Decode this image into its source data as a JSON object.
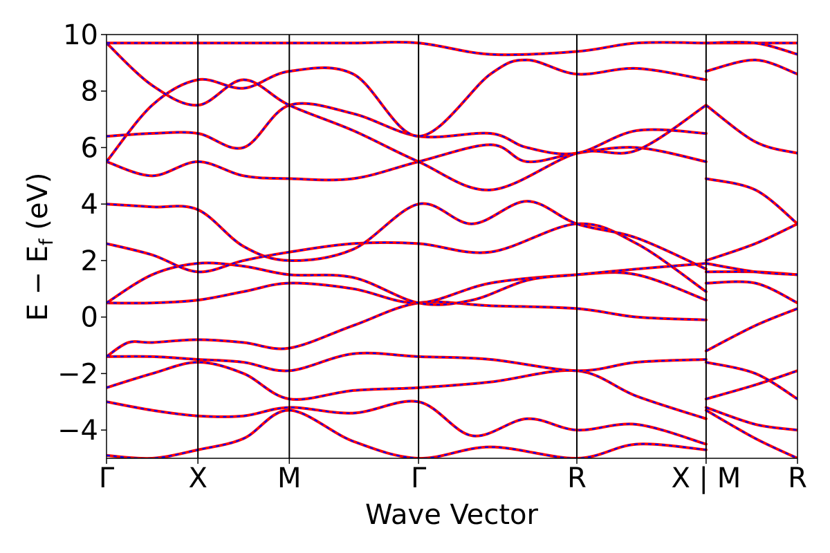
{
  "chart_data": {
    "type": "line",
    "title": "",
    "xlabel": "Wave Vector",
    "ylabel_main": "E − E",
    "ylabel_sub": "f",
    "ylabel_unit": " (eV)",
    "ylim": [
      -5,
      10
    ],
    "yticks": [
      -4,
      -2,
      0,
      2,
      4,
      6,
      8,
      10
    ],
    "ytick_labels": [
      "−4",
      "−2",
      "0",
      "2",
      "4",
      "6",
      "8",
      "10"
    ],
    "kpoint_labels": [
      "Γ",
      "X",
      "M",
      "Γ",
      "R",
      "X | M",
      "R"
    ],
    "kpoint_positions": [
      0,
      0.5,
      1.0,
      1.707,
      2.573,
      3.28,
      3.78
    ],
    "kpath_break_after": 3.28,
    "grid": false,
    "legend": "none",
    "colors": {
      "series_a": "#ff0000",
      "series_b": "#0000ff"
    },
    "series": [
      {
        "values": [
          {
            "k": 0,
            "e": -4.9
          },
          {
            "k": 0.25,
            "e": -5.0
          },
          {
            "k": 0.5,
            "e": -4.7
          },
          {
            "k": 0.75,
            "e": -4.3
          },
          {
            "k": 1.0,
            "e": -3.3
          },
          {
            "k": 1.35,
            "e": -4.4
          },
          {
            "k": 1.707,
            "e": -5.0
          },
          {
            "k": 2.1,
            "e": -4.6
          },
          {
            "k": 2.573,
            "e": -5.0
          },
          {
            "k": 2.9,
            "e": -4.5
          },
          {
            "k": 3.28,
            "e": -4.7
          },
          {
            "k": 3.28,
            "e": -3.3
          },
          {
            "k": 3.55,
            "e": -4.3
          },
          {
            "k": 3.78,
            "e": -5.0
          }
        ]
      },
      {
        "values": [
          {
            "k": 0,
            "e": -3.0
          },
          {
            "k": 0.25,
            "e": -3.3
          },
          {
            "k": 0.5,
            "e": -3.5
          },
          {
            "k": 0.75,
            "e": -3.5
          },
          {
            "k": 1.0,
            "e": -3.2
          },
          {
            "k": 1.35,
            "e": -3.4
          },
          {
            "k": 1.707,
            "e": -3.0
          },
          {
            "k": 2.0,
            "e": -4.2
          },
          {
            "k": 2.3,
            "e": -3.6
          },
          {
            "k": 2.573,
            "e": -4.0
          },
          {
            "k": 2.9,
            "e": -3.8
          },
          {
            "k": 3.28,
            "e": -4.5
          },
          {
            "k": 3.28,
            "e": -3.2
          },
          {
            "k": 3.55,
            "e": -3.8
          },
          {
            "k": 3.78,
            "e": -4.0
          }
        ]
      },
      {
        "values": [
          {
            "k": 0,
            "e": -2.5
          },
          {
            "k": 0.25,
            "e": -2.0
          },
          {
            "k": 0.5,
            "e": -1.6
          },
          {
            "k": 0.75,
            "e": -2.0
          },
          {
            "k": 1.0,
            "e": -2.9
          },
          {
            "k": 1.35,
            "e": -2.6
          },
          {
            "k": 1.707,
            "e": -2.5
          },
          {
            "k": 2.1,
            "e": -2.3
          },
          {
            "k": 2.573,
            "e": -1.9
          },
          {
            "k": 2.9,
            "e": -2.8
          },
          {
            "k": 3.28,
            "e": -3.6
          },
          {
            "k": 3.28,
            "e": -2.9
          },
          {
            "k": 3.55,
            "e": -2.4
          },
          {
            "k": 3.78,
            "e": -1.9
          }
        ]
      },
      {
        "values": [
          {
            "k": 0,
            "e": -1.4
          },
          {
            "k": 0.25,
            "e": -1.4
          },
          {
            "k": 0.5,
            "e": -1.5
          },
          {
            "k": 0.75,
            "e": -1.6
          },
          {
            "k": 1.0,
            "e": -1.9
          },
          {
            "k": 1.35,
            "e": -1.3
          },
          {
            "k": 1.707,
            "e": -1.4
          },
          {
            "k": 2.1,
            "e": -1.5
          },
          {
            "k": 2.573,
            "e": -1.9
          },
          {
            "k": 2.9,
            "e": -1.6
          },
          {
            "k": 3.28,
            "e": -1.5
          },
          {
            "k": 3.28,
            "e": -1.6
          },
          {
            "k": 3.55,
            "e": -2.0
          },
          {
            "k": 3.78,
            "e": -2.9
          }
        ]
      },
      {
        "values": [
          {
            "k": 0,
            "e": -1.4
          },
          {
            "k": 0.12,
            "e": -0.9
          },
          {
            "k": 0.25,
            "e": -0.9
          },
          {
            "k": 0.5,
            "e": -0.8
          },
          {
            "k": 0.75,
            "e": -0.9
          },
          {
            "k": 1.0,
            "e": -1.1
          },
          {
            "k": 1.35,
            "e": -0.3
          },
          {
            "k": 1.707,
            "e": 0.5
          },
          {
            "k": 2.1,
            "e": 0.4
          },
          {
            "k": 2.573,
            "e": 0.3
          },
          {
            "k": 2.9,
            "e": 0.0
          },
          {
            "k": 3.28,
            "e": -0.1
          },
          {
            "k": 3.28,
            "e": -1.2
          },
          {
            "k": 3.55,
            "e": -0.3
          },
          {
            "k": 3.78,
            "e": 0.3
          }
        ]
      },
      {
        "values": [
          {
            "k": 0,
            "e": 0.5
          },
          {
            "k": 0.25,
            "e": 0.5
          },
          {
            "k": 0.5,
            "e": 0.6
          },
          {
            "k": 0.75,
            "e": 0.9
          },
          {
            "k": 1.0,
            "e": 1.2
          },
          {
            "k": 1.35,
            "e": 1.0
          },
          {
            "k": 1.707,
            "e": 0.5
          },
          {
            "k": 2.1,
            "e": 1.2
          },
          {
            "k": 2.573,
            "e": 1.5
          },
          {
            "k": 2.9,
            "e": 1.5
          },
          {
            "k": 3.28,
            "e": 0.6
          },
          {
            "k": 3.28,
            "e": 1.2
          },
          {
            "k": 3.55,
            "e": 1.2
          },
          {
            "k": 3.78,
            "e": 0.5
          }
        ]
      },
      {
        "values": [
          {
            "k": 0,
            "e": 0.5
          },
          {
            "k": 0.25,
            "e": 1.5
          },
          {
            "k": 0.5,
            "e": 1.9
          },
          {
            "k": 0.75,
            "e": 1.8
          },
          {
            "k": 1.0,
            "e": 1.5
          },
          {
            "k": 1.35,
            "e": 1.4
          },
          {
            "k": 1.707,
            "e": 0.5
          },
          {
            "k": 2.0,
            "e": 0.6
          },
          {
            "k": 2.3,
            "e": 1.3
          },
          {
            "k": 2.573,
            "e": 1.5
          },
          {
            "k": 2.9,
            "e": 1.7
          },
          {
            "k": 3.28,
            "e": 1.9
          },
          {
            "k": 3.28,
            "e": 1.6
          },
          {
            "k": 3.55,
            "e": 1.6
          },
          {
            "k": 3.78,
            "e": 1.5
          }
        ]
      },
      {
        "values": [
          {
            "k": 0,
            "e": 2.6
          },
          {
            "k": 0.25,
            "e": 2.2
          },
          {
            "k": 0.5,
            "e": 1.6
          },
          {
            "k": 0.75,
            "e": 2.0
          },
          {
            "k": 1.0,
            "e": 2.3
          },
          {
            "k": 1.35,
            "e": 2.6
          },
          {
            "k": 1.707,
            "e": 2.6
          },
          {
            "k": 2.1,
            "e": 2.3
          },
          {
            "k": 2.573,
            "e": 3.3
          },
          {
            "k": 2.9,
            "e": 2.6
          },
          {
            "k": 3.28,
            "e": 0.9
          },
          {
            "k": 3.28,
            "e": 1.9
          },
          {
            "k": 3.55,
            "e": 1.6
          },
          {
            "k": 3.78,
            "e": 1.5
          }
        ]
      },
      {
        "values": [
          {
            "k": 0,
            "e": 4.0
          },
          {
            "k": 0.25,
            "e": 3.9
          },
          {
            "k": 0.5,
            "e": 3.8
          },
          {
            "k": 0.75,
            "e": 2.5
          },
          {
            "k": 1.0,
            "e": 2.0
          },
          {
            "k": 1.35,
            "e": 2.4
          },
          {
            "k": 1.707,
            "e": 4.0
          },
          {
            "k": 2.0,
            "e": 3.3
          },
          {
            "k": 2.3,
            "e": 4.1
          },
          {
            "k": 2.573,
            "e": 3.3
          },
          {
            "k": 2.9,
            "e": 2.8
          },
          {
            "k": 3.28,
            "e": 1.7
          },
          {
            "k": 3.28,
            "e": 2.0
          },
          {
            "k": 3.55,
            "e": 2.6
          },
          {
            "k": 3.78,
            "e": 3.3
          }
        ]
      },
      {
        "values": [
          {
            "k": 0,
            "e": 5.5
          },
          {
            "k": 0.25,
            "e": 5.0
          },
          {
            "k": 0.5,
            "e": 5.5
          },
          {
            "k": 0.75,
            "e": 5.0
          },
          {
            "k": 1.0,
            "e": 4.9
          },
          {
            "k": 1.35,
            "e": 4.9
          },
          {
            "k": 1.707,
            "e": 5.5
          },
          {
            "k": 2.1,
            "e": 6.1
          },
          {
            "k": 2.3,
            "e": 5.5
          },
          {
            "k": 2.573,
            "e": 5.8
          },
          {
            "k": 2.9,
            "e": 6.0
          },
          {
            "k": 3.28,
            "e": 5.5
          },
          {
            "k": 3.28,
            "e": 4.9
          },
          {
            "k": 3.55,
            "e": 4.5
          },
          {
            "k": 3.78,
            "e": 3.3
          }
        ]
      },
      {
        "values": [
          {
            "k": 0,
            "e": 6.4
          },
          {
            "k": 0.25,
            "e": 6.5
          },
          {
            "k": 0.5,
            "e": 6.5
          },
          {
            "k": 0.75,
            "e": 6.0
          },
          {
            "k": 1.0,
            "e": 7.5
          },
          {
            "k": 1.35,
            "e": 7.2
          },
          {
            "k": 1.707,
            "e": 6.4
          },
          {
            "k": 2.1,
            "e": 6.5
          },
          {
            "k": 2.3,
            "e": 6.0
          },
          {
            "k": 2.573,
            "e": 5.8
          },
          {
            "k": 2.9,
            "e": 6.6
          },
          {
            "k": 3.28,
            "e": 6.5
          },
          {
            "k": 3.28,
            "e": 7.5
          },
          {
            "k": 3.55,
            "e": 6.2
          },
          {
            "k": 3.78,
            "e": 5.8
          }
        ]
      },
      {
        "values": [
          {
            "k": 0,
            "e": 5.5
          },
          {
            "k": 0.25,
            "e": 7.5
          },
          {
            "k": 0.5,
            "e": 8.4
          },
          {
            "k": 0.75,
            "e": 8.1
          },
          {
            "k": 1.0,
            "e": 8.7
          },
          {
            "k": 1.35,
            "e": 8.6
          },
          {
            "k": 1.707,
            "e": 6.4
          },
          {
            "k": 2.1,
            "e": 8.6
          },
          {
            "k": 2.3,
            "e": 9.1
          },
          {
            "k": 2.573,
            "e": 8.6
          },
          {
            "k": 2.9,
            "e": 8.8
          },
          {
            "k": 3.28,
            "e": 8.4
          },
          {
            "k": 3.28,
            "e": 8.7
          },
          {
            "k": 3.55,
            "e": 9.1
          },
          {
            "k": 3.78,
            "e": 8.6
          }
        ]
      },
      {
        "values": [
          {
            "k": 0,
            "e": 9.7
          },
          {
            "k": 0.25,
            "e": 8.2
          },
          {
            "k": 0.5,
            "e": 7.5
          },
          {
            "k": 0.75,
            "e": 8.4
          },
          {
            "k": 1.0,
            "e": 7.5
          },
          {
            "k": 1.35,
            "e": 6.6
          },
          {
            "k": 1.707,
            "e": 5.5
          },
          {
            "k": 2.1,
            "e": 4.5
          },
          {
            "k": 2.573,
            "e": 5.8
          },
          {
            "k": 2.9,
            "e": 5.9
          },
          {
            "k": 3.28,
            "e": 7.5
          },
          {
            "k": 3.28,
            "e": 9.7
          },
          {
            "k": 3.55,
            "e": 9.7
          },
          {
            "k": 3.78,
            "e": 9.7
          }
        ]
      },
      {
        "values": [
          {
            "k": 0,
            "e": 9.7
          },
          {
            "k": 0.25,
            "e": 9.7
          },
          {
            "k": 0.5,
            "e": 9.7
          },
          {
            "k": 0.75,
            "e": 9.7
          },
          {
            "k": 1.0,
            "e": 9.7
          },
          {
            "k": 1.35,
            "e": 9.7
          },
          {
            "k": 1.707,
            "e": 9.7
          },
          {
            "k": 2.1,
            "e": 9.3
          },
          {
            "k": 2.573,
            "e": 9.4
          },
          {
            "k": 2.9,
            "e": 9.7
          },
          {
            "k": 3.28,
            "e": 9.7
          },
          {
            "k": 3.28,
            "e": 9.7
          },
          {
            "k": 3.55,
            "e": 9.7
          },
          {
            "k": 3.78,
            "e": 9.3
          }
        ]
      }
    ]
  }
}
